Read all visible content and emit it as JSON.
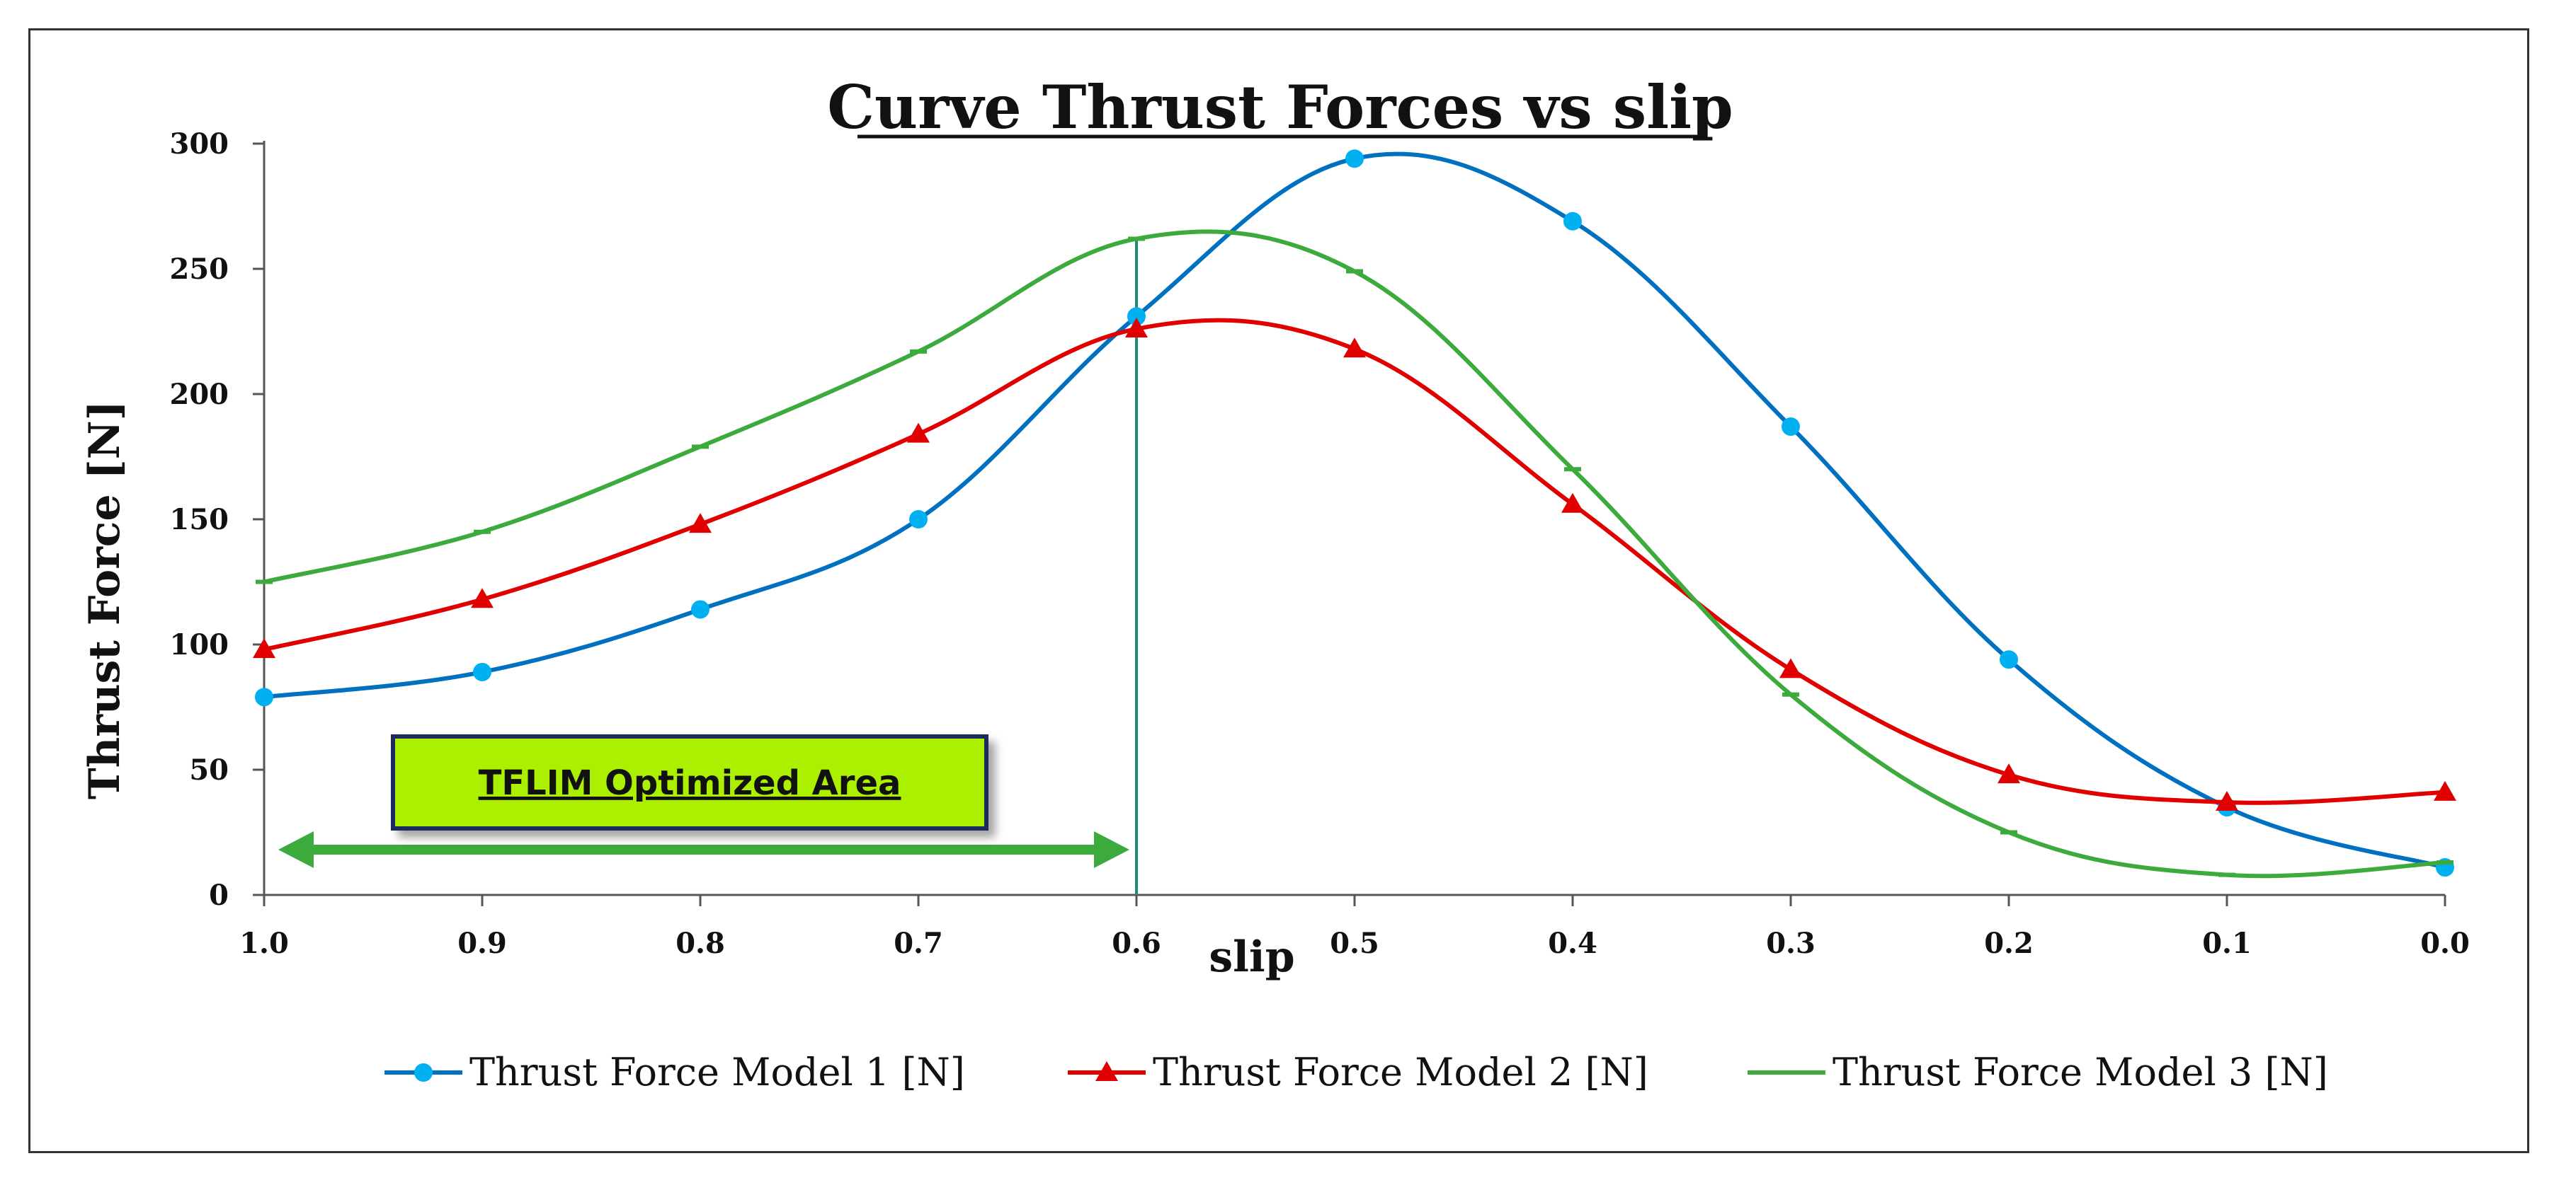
{
  "chart_data": {
    "type": "line",
    "title": "Curve Thrust  Forces vs slip",
    "xlabel": "slip",
    "ylabel": "Thrust Force [N]",
    "x": [
      1.0,
      0.9,
      0.8,
      0.7,
      0.6,
      0.5,
      0.4,
      0.3,
      0.2,
      0.1,
      0.0
    ],
    "x_tick_labels": [
      "1.0",
      "0.9",
      "0.8",
      "0.7",
      "0.6",
      "0.5",
      "0.4",
      "0.3",
      "0.2",
      "0.1",
      "0.0"
    ],
    "xlim": [
      1.0,
      0.0
    ],
    "ylim": [
      0,
      300
    ],
    "y_ticks": [
      0,
      50,
      100,
      150,
      200,
      250,
      300
    ],
    "grid": false,
    "legend_position": "bottom",
    "series": [
      {
        "name": "Thrust Force Model 1 [N]",
        "color": "#0070C0",
        "marker": "circle",
        "marker_color": "#00B0F0",
        "values": [
          79,
          89,
          114,
          150,
          231,
          294,
          269,
          187,
          94,
          35,
          11
        ]
      },
      {
        "name": "Thrust Force Model 2 [N]",
        "color": "#E00000",
        "marker": "triangle",
        "marker_color": "#E00000",
        "values": [
          98,
          118,
          148,
          184,
          226,
          218,
          156,
          90,
          48,
          37,
          41
        ]
      },
      {
        "name": "Thrust Force Model 3 [N]",
        "color": "#3CAA3C",
        "marker": "dash",
        "marker_color": "#3CAA3C",
        "values": [
          125,
          145,
          179,
          217,
          262,
          249,
          170,
          80,
          25,
          8,
          13
        ]
      }
    ],
    "annotations": {
      "optimized_area_label": "TFLIM Optimized Area",
      "optimized_area_range": [
        1.0,
        0.6
      ],
      "optimized_area_color": "#AAF000",
      "arrow_color": "#3CAA3C",
      "boundary_line_x": 0.6,
      "boundary_line_color": "#1E8C78"
    }
  }
}
